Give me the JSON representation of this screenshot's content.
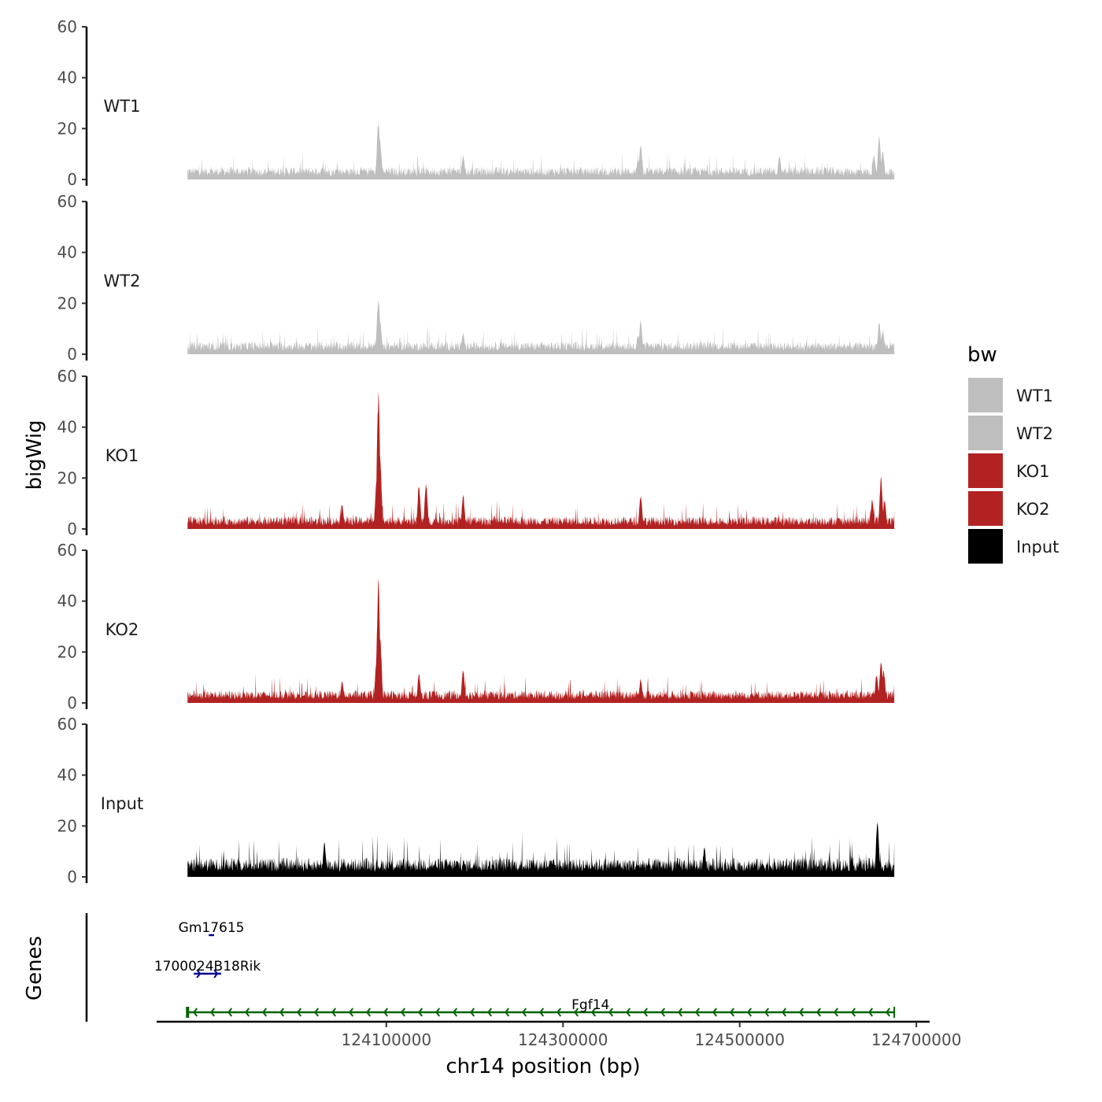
{
  "chart_data": {
    "type": "area",
    "title": "",
    "ylabel": "bigWig",
    "xlabel": "chr14 position (bp)",
    "xlim": [
      123840000,
      124715000
    ],
    "region": [
      123875000,
      124675000
    ],
    "ylim": [
      0,
      60
    ],
    "yticks": [
      0,
      20,
      40,
      60
    ],
    "xticks": [
      124100000,
      124300000,
      124500000,
      124700000
    ],
    "xtick_labels": [
      "124100000",
      "124300000",
      "124500000",
      "124700000"
    ],
    "legend": {
      "title": "bw",
      "position": "right",
      "entries": [
        {
          "label": "WT1",
          "color": "#bebebe"
        },
        {
          "label": "WT2",
          "color": "#bebebe"
        },
        {
          "label": "KO1",
          "color": "#b22222"
        },
        {
          "label": "KO2",
          "color": "#b22222"
        },
        {
          "label": "Input",
          "color": "#000000"
        }
      ]
    },
    "series": [
      {
        "name": "WT1",
        "color": "#bebebe",
        "baseline": 4,
        "peaks": [
          [
            124090000,
            6
          ],
          [
            124091000,
            24
          ],
          [
            124093000,
            16
          ],
          [
            124187000,
            10
          ],
          [
            124385000,
            8
          ],
          [
            124388000,
            15
          ],
          [
            124545000,
            10
          ],
          [
            124652000,
            10
          ],
          [
            124658000,
            18
          ],
          [
            124662000,
            12
          ]
        ]
      },
      {
        "name": "WT2",
        "color": "#bebebe",
        "baseline": 4,
        "peaks": [
          [
            124091000,
            23
          ],
          [
            124093000,
            14
          ],
          [
            124187000,
            9
          ],
          [
            124385000,
            8
          ],
          [
            124388000,
            14
          ],
          [
            124658000,
            13
          ],
          [
            124662000,
            10
          ]
        ]
      },
      {
        "name": "KO1",
        "color": "#b22222",
        "baseline": 4,
        "peaks": [
          [
            124050000,
            10
          ],
          [
            124089000,
            20
          ],
          [
            124091000,
            56
          ],
          [
            124093000,
            30
          ],
          [
            124137000,
            18
          ],
          [
            124145000,
            19
          ],
          [
            124187000,
            14
          ],
          [
            124388000,
            14
          ],
          [
            124650000,
            12
          ],
          [
            124660000,
            21
          ],
          [
            124664000,
            12
          ]
        ]
      },
      {
        "name": "KO2",
        "color": "#b22222",
        "baseline": 4,
        "peaks": [
          [
            124050000,
            9
          ],
          [
            124089000,
            18
          ],
          [
            124091000,
            50
          ],
          [
            124093000,
            28
          ],
          [
            124137000,
            12
          ],
          [
            124187000,
            14
          ],
          [
            124388000,
            10
          ],
          [
            124655000,
            12
          ],
          [
            124660000,
            18
          ],
          [
            124663000,
            14
          ]
        ]
      },
      {
        "name": "Input",
        "color": "#000000",
        "baseline": 6,
        "peaks": [
          [
            124030000,
            14
          ],
          [
            124460000,
            12
          ],
          [
            124656000,
            24
          ]
        ]
      }
    ],
    "genes_label": "Genes",
    "genes": [
      {
        "name": "Gm17615",
        "start": 123899000,
        "end": 123905000,
        "strand": "+",
        "row": 1,
        "color": "#00008b"
      },
      {
        "name": "1700024B18Rik",
        "start": 123882000,
        "end": 123913000,
        "strand": "+",
        "row": 2,
        "color": "#00008b"
      },
      {
        "name": "Fgf14",
        "start": 123875000,
        "end": 124675000,
        "strand": "-",
        "row": 3,
        "color": "#006400"
      }
    ]
  }
}
